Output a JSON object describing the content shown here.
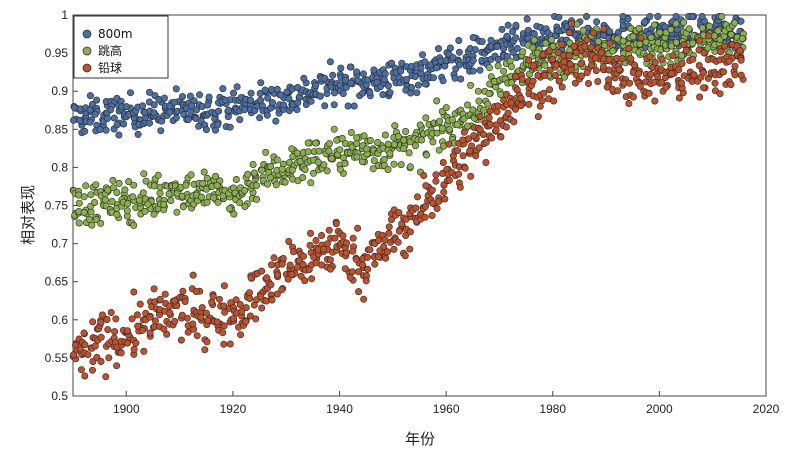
{
  "chart_data": {
    "type": "scatter",
    "title": "",
    "xlabel": "年份",
    "ylabel": "相对表现",
    "xlim": [
      1890,
      2020
    ],
    "ylim": [
      0.5,
      1.0
    ],
    "xticks": [
      1900,
      1920,
      1940,
      1960,
      1980,
      2000,
      2020
    ],
    "yticks": [
      0.5,
      0.55,
      0.6,
      0.65,
      0.7,
      0.75,
      0.8,
      0.85,
      0.9,
      0.95,
      1
    ],
    "xtick_labels": [
      "1900",
      "1920",
      "1940",
      "1960",
      "1980",
      "2000",
      "2020"
    ],
    "ytick_labels": [
      "0.5",
      "0.55",
      "0.6",
      "0.65",
      "0.7",
      "0.75",
      "0.8",
      "0.85",
      "0.9",
      "0.95",
      "1"
    ],
    "grid": false,
    "legend_position": "top-left",
    "series": [
      {
        "name": "800m",
        "color": "#4a6fa5",
        "trend_x": [
          1890,
          1900,
          1910,
          1915,
          1920,
          1930,
          1940,
          1950,
          1955,
          1960,
          1965,
          1970,
          1975,
          1980,
          1985,
          1990,
          2000,
          2010,
          2015
        ],
        "trend_y": [
          0.865,
          0.87,
          0.875,
          0.875,
          0.88,
          0.89,
          0.91,
          0.915,
          0.925,
          0.935,
          0.945,
          0.955,
          0.965,
          0.97,
          0.975,
          0.975,
          0.975,
          0.978,
          0.98
        ],
        "spread": 0.012,
        "points_per_year": 6
      },
      {
        "name": "跳高",
        "color": "#8ab04a",
        "trend_x": [
          1890,
          1900,
          1910,
          1915,
          1920,
          1925,
          1930,
          1940,
          1950,
          1955,
          1960,
          1965,
          1970,
          1975,
          1980,
          1985,
          1990,
          2000,
          2010,
          2015
        ],
        "trend_y": [
          0.75,
          0.755,
          0.77,
          0.77,
          0.76,
          0.79,
          0.8,
          0.82,
          0.825,
          0.83,
          0.855,
          0.87,
          0.91,
          0.935,
          0.945,
          0.955,
          0.96,
          0.96,
          0.965,
          0.965
        ],
        "spread": 0.014,
        "points_per_year": 6
      },
      {
        "name": "铅球",
        "color": "#c0512b",
        "trend_x": [
          1890,
          1895,
          1900,
          1905,
          1910,
          1915,
          1920,
          1925,
          1930,
          1935,
          1940,
          1945,
          1950,
          1955,
          1960,
          1965,
          1970,
          1975,
          1980,
          1985,
          1990,
          1995,
          2000,
          2005,
          2010,
          2015
        ],
        "trend_y": [
          0.55,
          0.57,
          0.58,
          0.6,
          0.61,
          0.605,
          0.61,
          0.635,
          0.665,
          0.685,
          0.7,
          0.67,
          0.71,
          0.74,
          0.79,
          0.825,
          0.87,
          0.905,
          0.925,
          0.945,
          0.935,
          0.92,
          0.915,
          0.925,
          0.935,
          0.94
        ],
        "spread": 0.018,
        "points_per_year": 6
      }
    ]
  }
}
